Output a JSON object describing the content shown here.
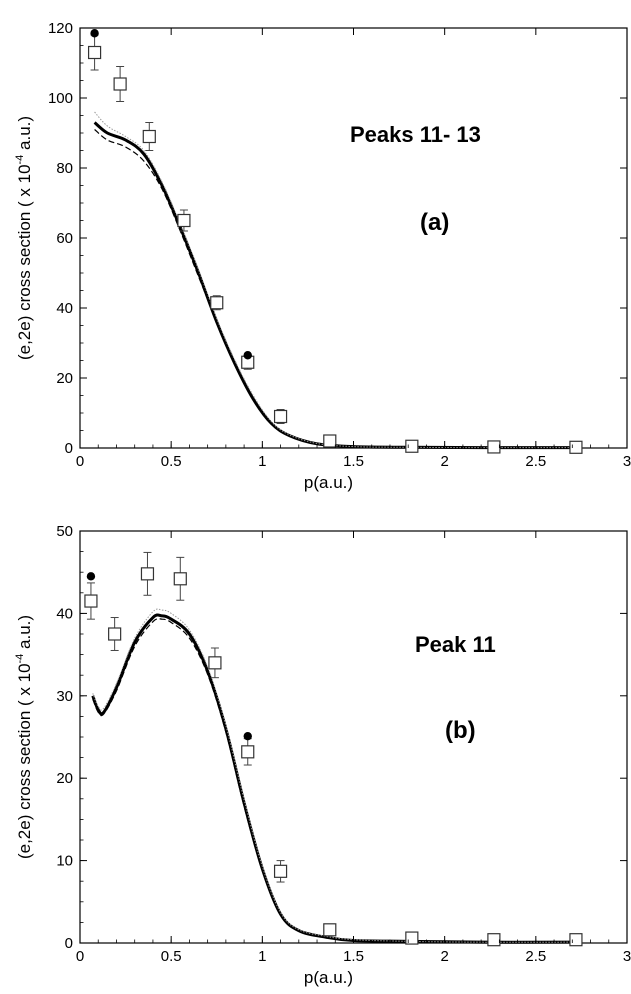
{
  "chart_data": [
    {
      "type": "line",
      "title": "Peaks 11- 13",
      "panel_label": "(a)",
      "xlabel": "p(a.u.)",
      "ylabel": "(e,2e) cross section ( x 10",
      "ylabel_exp": "-4",
      "ylabel_tail": " a.u.)",
      "xlim": [
        0,
        3
      ],
      "ylim": [
        0,
        120
      ],
      "xticks": [
        "0",
        "0.5",
        "1",
        "1.5",
        "2",
        "2.5",
        "3"
      ],
      "yticks": [
        "0",
        "20",
        "40",
        "60",
        "80",
        "100",
        "120"
      ],
      "series": [
        {
          "style": "thick-solid",
          "x": [
            0.08,
            0.15,
            0.25,
            0.35,
            0.45,
            0.55,
            0.65,
            0.75,
            0.85,
            0.95,
            1.05,
            1.15,
            1.3,
            1.5,
            1.8,
            2.2,
            2.7
          ],
          "y": [
            93,
            90,
            88,
            84,
            75,
            63,
            50,
            36,
            24,
            14,
            7,
            3.5,
            1.2,
            0.4,
            0.2,
            0.1,
            0.1
          ]
        },
        {
          "style": "dashed",
          "x": [
            0.08,
            0.15,
            0.25,
            0.35,
            0.45,
            0.55,
            0.65,
            0.75,
            0.85,
            0.95,
            1.05,
            1.15,
            1.3,
            1.5,
            1.8,
            2.2,
            2.7
          ],
          "y": [
            91,
            88,
            86,
            82,
            74,
            62,
            49,
            36,
            24,
            14,
            7,
            3.5,
            1.2,
            0.4,
            0.2,
            0.1,
            0.1
          ]
        },
        {
          "style": "thin-grey",
          "x": [
            0.08,
            0.15,
            0.25,
            0.35,
            0.45,
            0.55,
            0.65,
            0.75,
            0.85,
            0.95,
            1.05,
            1.15,
            1.3,
            1.5,
            1.8,
            2.2,
            2.7
          ],
          "y": [
            96,
            92,
            89,
            85,
            76,
            64,
            51,
            37,
            25,
            15,
            7.5,
            3.7,
            1.3,
            0.4,
            0.2,
            0.1,
            0.1
          ]
        },
        {
          "style": "open-square-errorbar",
          "x": [
            0.08,
            0.22,
            0.38,
            0.57,
            0.75,
            0.92,
            1.1,
            1.37,
            1.82,
            2.27,
            2.72
          ],
          "y": [
            113,
            104,
            89,
            65,
            41.5,
            24.5,
            9,
            2,
            0.5,
            0.3,
            0.2
          ],
          "err": [
            5,
            5,
            4,
            3,
            2,
            2,
            2,
            1,
            0.5,
            0.3,
            0.2
          ]
        },
        {
          "style": "filled-circle",
          "x": [
            0.08,
            0.92
          ],
          "y": [
            118.5,
            26.5
          ]
        }
      ]
    },
    {
      "type": "line",
      "title": "Peak 11",
      "panel_label": "(b)",
      "xlabel": "p(a.u.)",
      "ylabel": "(e,2e) cross section ( x 10",
      "ylabel_exp": "-4",
      "ylabel_tail": " a.u.)",
      "xlim": [
        0,
        3
      ],
      "ylim": [
        0,
        50
      ],
      "xticks": [
        "0",
        "0.5",
        "1",
        "1.5",
        "2",
        "2.5",
        "3"
      ],
      "yticks": [
        "0",
        "10",
        "20",
        "30",
        "40",
        "50"
      ],
      "series": [
        {
          "style": "thick-solid",
          "x": [
            0.07,
            0.1,
            0.13,
            0.2,
            0.3,
            0.4,
            0.45,
            0.5,
            0.6,
            0.7,
            0.8,
            0.9,
            1.0,
            1.1,
            1.2,
            1.35,
            1.5,
            1.8,
            2.2,
            2.7
          ],
          "y": [
            30,
            28.3,
            28,
            31,
            36.5,
            39.5,
            39.7,
            39.3,
            37.5,
            33,
            26,
            17,
            9,
            3.5,
            1.5,
            0.7,
            0.3,
            0.2,
            0.1,
            0.1
          ]
        },
        {
          "style": "dashed",
          "x": [
            0.07,
            0.1,
            0.13,
            0.2,
            0.3,
            0.4,
            0.45,
            0.5,
            0.6,
            0.7,
            0.8,
            0.9,
            1.0,
            1.1,
            1.2,
            1.35,
            1.5,
            1.8,
            2.2,
            2.7
          ],
          "y": [
            29.6,
            28,
            27.8,
            30.6,
            36,
            39,
            39.3,
            38.9,
            37,
            32.6,
            25.6,
            16.6,
            8.8,
            3.4,
            1.5,
            0.7,
            0.3,
            0.2,
            0.1,
            0.1
          ]
        },
        {
          "style": "thin-grey",
          "x": [
            0.07,
            0.1,
            0.13,
            0.2,
            0.3,
            0.4,
            0.45,
            0.5,
            0.6,
            0.7,
            0.8,
            0.9,
            1.0,
            1.1,
            1.2,
            1.35,
            1.5,
            1.8,
            2.2,
            2.7
          ],
          "y": [
            30.3,
            28.7,
            28.5,
            31.5,
            37,
            40.2,
            40.4,
            40,
            38,
            33.5,
            26.4,
            17.4,
            9.3,
            3.7,
            1.6,
            0.8,
            0.4,
            0.2,
            0.1,
            0.1
          ]
        },
        {
          "style": "open-square-errorbar",
          "x": [
            0.06,
            0.19,
            0.37,
            0.55,
            0.74,
            0.92,
            1.1,
            1.37,
            1.82,
            2.27,
            2.72
          ],
          "y": [
            41.5,
            37.5,
            44.8,
            44.2,
            34,
            23.2,
            8.7,
            1.6,
            0.6,
            0.4,
            0.4
          ],
          "err": [
            2.2,
            2,
            2.6,
            2.6,
            1.8,
            1.6,
            1.3,
            0.6,
            0.4,
            0.3,
            0.3
          ]
        },
        {
          "style": "filled-circle",
          "x": [
            0.06,
            0.92
          ],
          "y": [
            44.5,
            25.1
          ]
        }
      ]
    }
  ]
}
